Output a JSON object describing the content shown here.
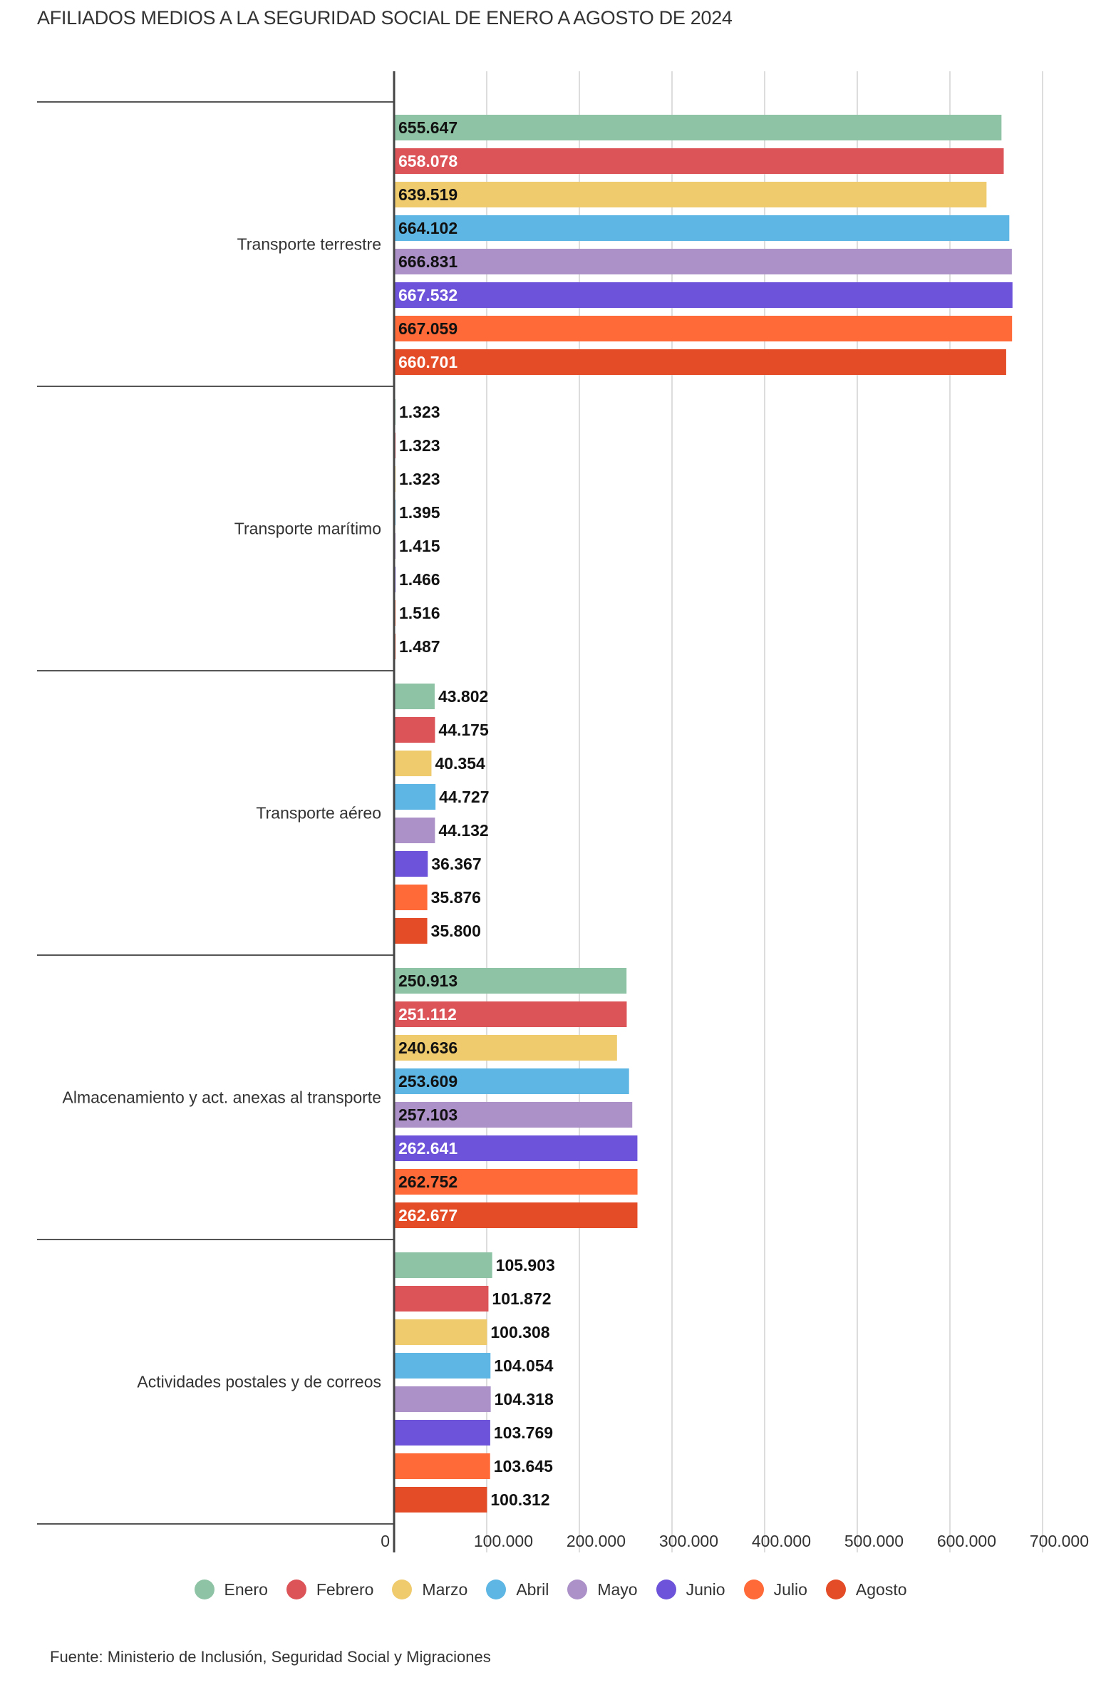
{
  "chart_data": {
    "type": "bar",
    "orientation": "horizontal",
    "title": "AFILIADOS MEDIOS A LA SEGURIDAD SOCIAL DE ENERO A AGOSTO DE 2024",
    "source": "Fuente: Ministerio de Inclusión, Seguridad Social y Migraciones",
    "categories": [
      "Transporte terrestre",
      "Transporte marítimo",
      "Transporte aéreo",
      "Almacenamiento y act. anexas al transporte",
      "Actividades postales y de correos"
    ],
    "series": [
      {
        "name": "Enero",
        "color": "#8ec4a5",
        "label_color": "#111111",
        "values": [
          655647,
          1323,
          43802,
          250913,
          105903
        ],
        "labels": [
          "655.647",
          "1.323",
          "43.802",
          "250.913",
          "105.903"
        ]
      },
      {
        "name": "Febrero",
        "color": "#dc5458",
        "label_color": "#ffffff",
        "values": [
          658078,
          1323,
          44175,
          251112,
          101872
        ],
        "labels": [
          "658.078",
          "1.323",
          "44.175",
          "251.112",
          "101.872"
        ]
      },
      {
        "name": "Marzo",
        "color": "#efcb6e",
        "label_color": "#111111",
        "values": [
          639519,
          1323,
          40354,
          240636,
          100308
        ],
        "labels": [
          "639.519",
          "1.323",
          "40.354",
          "240.636",
          "100.308"
        ]
      },
      {
        "name": "Abril",
        "color": "#5db6e3",
        "label_color": "#111111",
        "values": [
          664102,
          1395,
          44727,
          253609,
          104054
        ],
        "labels": [
          "664.102",
          "1.395",
          "44.727",
          "253.609",
          "104.054"
        ]
      },
      {
        "name": "Mayo",
        "color": "#ab91c8",
        "label_color": "#111111",
        "values": [
          666831,
          1415,
          44132,
          257103,
          104318
        ],
        "labels": [
          "666.831",
          "1.415",
          "44.132",
          "257.103",
          "104.318"
        ]
      },
      {
        "name": "Junio",
        "color": "#6c53d9",
        "label_color": "#ffffff",
        "values": [
          667532,
          1466,
          36367,
          262641,
          103769
        ],
        "labels": [
          "667.532",
          "1.466",
          "36.367",
          "262.641",
          "103.769"
        ]
      },
      {
        "name": "Julio",
        "color": "#ff6a38",
        "label_color": "#111111",
        "values": [
          667059,
          1516,
          35876,
          262752,
          103645
        ],
        "labels": [
          "667.059",
          "1.516",
          "35.876",
          "262.752",
          "103.645"
        ]
      },
      {
        "name": "Agosto",
        "color": "#e34c26",
        "label_color": "#ffffff",
        "values": [
          660701,
          1487,
          35800,
          262677,
          100312
        ],
        "labels": [
          "660.701",
          "1.487",
          "35.800",
          "262.677",
          "100.312"
        ]
      }
    ],
    "xlim": [
      0,
      700000
    ],
    "xticks": [
      0,
      100000,
      200000,
      300000,
      400000,
      500000,
      600000,
      700000
    ],
    "xtick_labels": [
      "0",
      "100.000",
      "200.000",
      "300.000",
      "400.000",
      "500.000",
      "600.000",
      "700.000"
    ],
    "grid": true,
    "legend_position": "bottom-center",
    "xlabel": "",
    "ylabel": ""
  }
}
